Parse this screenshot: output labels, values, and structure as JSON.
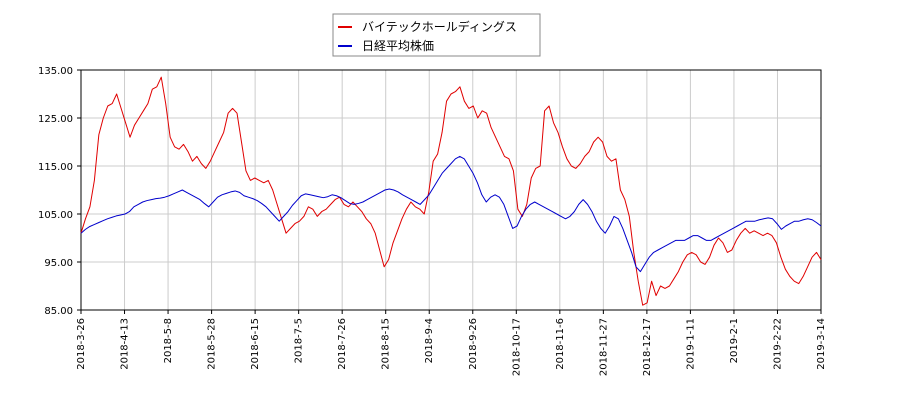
{
  "chart_data": {
    "type": "line",
    "title": "",
    "xlabel": "",
    "ylabel": "",
    "ylim": [
      85,
      135
    ],
    "y_ticks": [
      "135.00",
      "125.00",
      "115.00",
      "105.00",
      "95.00",
      "85.00"
    ],
    "x_ticks": [
      "2018-3-26",
      "2018-4-13",
      "2018-5-8",
      "2018-5-28",
      "2018-6-15",
      "2018-7-5",
      "2018-7-26",
      "2018-8-15",
      "2018-9-4",
      "2018-9-26",
      "2018-10-17",
      "2018-11-6",
      "2018-11-27",
      "2018-12-17",
      "2019-1-11",
      "2019-2-1",
      "2019-2-22",
      "2019-3-14"
    ],
    "grid": true,
    "legend_position": "top-center",
    "series": [
      {
        "name": "バイテックホールディングス",
        "color": "#e00000",
        "values": [
          101.0,
          104.0,
          106.5,
          112.0,
          121.5,
          125.0,
          127.5,
          128.0,
          130.0,
          127.0,
          124.0,
          121.0,
          123.5,
          125.0,
          126.5,
          128.0,
          131.0,
          131.5,
          133.5,
          128.0,
          121.0,
          119.0,
          118.5,
          119.5,
          118.0,
          116.0,
          117.0,
          115.5,
          114.5,
          116.0,
          118.0,
          120.0,
          122.0,
          126.0,
          127.0,
          126.0,
          120.0,
          114.0,
          112.0,
          112.5,
          112.0,
          111.5,
          112.0,
          110.0,
          107.0,
          104.0,
          101.0,
          102.0,
          103.0,
          103.5,
          104.5,
          106.5,
          106.0,
          104.5,
          105.5,
          106.0,
          107.0,
          108.0,
          108.5,
          107.0,
          106.5,
          107.5,
          106.5,
          105.5,
          104.0,
          103.0,
          101.0,
          97.5,
          94.0,
          95.5,
          99.0,
          101.5,
          104.0,
          106.0,
          107.5,
          106.5,
          106.0,
          105.0,
          109.5,
          116.0,
          117.5,
          122.0,
          128.5,
          130.0,
          130.5,
          131.5,
          128.5,
          127.0,
          127.5,
          125.0,
          126.5,
          126.0,
          123.0,
          121.0,
          119.0,
          117.0,
          116.5,
          114.0,
          106.0,
          104.5,
          107.0,
          112.5,
          114.5,
          115.0,
          126.5,
          127.5,
          124.0,
          122.0,
          119.0,
          116.5,
          115.0,
          114.5,
          115.5,
          117.0,
          118.0,
          120.0,
          121.0,
          120.0,
          117.0,
          116.0,
          116.5,
          110.0,
          108.0,
          104.5,
          97.0,
          91.0,
          86.0,
          86.5,
          91.0,
          88.0,
          90.0,
          89.5,
          90.0,
          91.5,
          93.0,
          95.0,
          96.5,
          97.0,
          96.5,
          95.0,
          94.5,
          96.0,
          98.5,
          100.0,
          99.0,
          97.0,
          97.5,
          99.5,
          101.0,
          102.0,
          101.0,
          101.5,
          101.0,
          100.5,
          101.0,
          100.5,
          99.0,
          96.0,
          93.5,
          92.0,
          91.0,
          90.5,
          92.0,
          94.0,
          96.0,
          97.0,
          95.5
        ]
      },
      {
        "name": "日経平均株価",
        "color": "#0000cc",
        "values": [
          101.0,
          101.8,
          102.4,
          102.8,
          103.2,
          103.6,
          104.0,
          104.3,
          104.6,
          104.8,
          105.0,
          105.5,
          106.5,
          107.0,
          107.5,
          107.8,
          108.0,
          108.2,
          108.3,
          108.5,
          108.8,
          109.2,
          109.6,
          110.0,
          109.5,
          109.0,
          108.5,
          108.0,
          107.2,
          106.5,
          107.5,
          108.5,
          109.0,
          109.3,
          109.6,
          109.8,
          109.5,
          108.8,
          108.5,
          108.2,
          107.8,
          107.2,
          106.5,
          105.5,
          104.5,
          103.5,
          104.5,
          105.5,
          106.8,
          107.8,
          108.8,
          109.2,
          109.0,
          108.8,
          108.6,
          108.4,
          108.6,
          109.0,
          108.8,
          108.4,
          107.8,
          107.2,
          107.0,
          107.2,
          107.5,
          108.0,
          108.5,
          109.0,
          109.5,
          110.0,
          110.2,
          110.0,
          109.6,
          109.0,
          108.5,
          108.0,
          107.5,
          107.0,
          108.0,
          109.0,
          110.5,
          112.0,
          113.5,
          114.5,
          115.5,
          116.5,
          117.0,
          116.5,
          115.0,
          113.5,
          111.5,
          109.0,
          107.5,
          108.5,
          109.0,
          108.5,
          107.0,
          104.5,
          102.0,
          102.5,
          104.5,
          106.0,
          107.0,
          107.5,
          107.0,
          106.5,
          106.0,
          105.5,
          105.0,
          104.5,
          104.0,
          104.5,
          105.5,
          107.0,
          108.0,
          107.0,
          105.5,
          103.5,
          102.0,
          101.0,
          102.5,
          104.5,
          104.0,
          102.0,
          99.5,
          97.0,
          94.0,
          93.0,
          94.5,
          96.0,
          97.0,
          97.5,
          98.0,
          98.5,
          99.0,
          99.5,
          99.5,
          99.5,
          100.0,
          100.5,
          100.5,
          100.0,
          99.5,
          99.5,
          100.0,
          100.5,
          101.0,
          101.5,
          102.0,
          102.5,
          103.0,
          103.5,
          103.5,
          103.5,
          103.8,
          104.0,
          104.2,
          104.0,
          103.0,
          101.8,
          102.5,
          103.0,
          103.5,
          103.5,
          103.8,
          104.0,
          103.8,
          103.2,
          102.5
        ]
      }
    ]
  }
}
